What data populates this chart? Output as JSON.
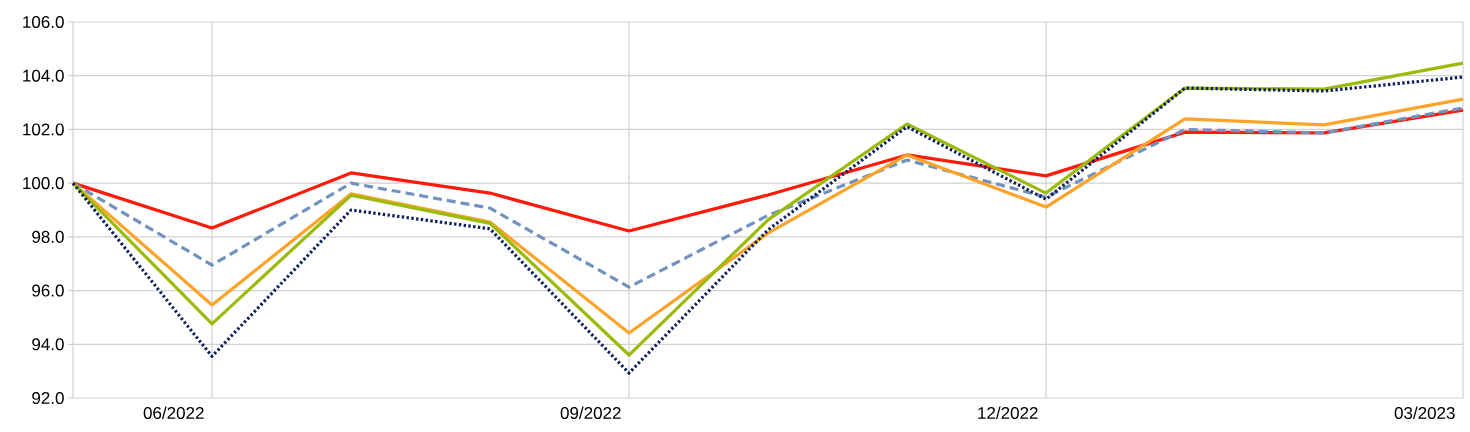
{
  "chart_data": {
    "type": "line",
    "categories": [
      null,
      "06/2022",
      null,
      null,
      "09/2022",
      null,
      null,
      "12/2022",
      null,
      null,
      "03/2023"
    ],
    "series": [
      {
        "color": "#ff1a0a",
        "line_style": "solid",
        "values": [
          100.0,
          98.33,
          100.38,
          99.63,
          98.22,
          99.56,
          101.05,
          100.27,
          101.9,
          101.87,
          102.72
        ]
      },
      {
        "color": "#7393bf",
        "line_style": "dashed",
        "values": [
          100.0,
          96.95,
          100.0,
          99.07,
          96.13,
          98.8,
          100.86,
          99.48,
          102.0,
          101.87,
          102.8
        ]
      },
      {
        "color": "#fca32a",
        "line_style": "solid",
        "values": [
          100.0,
          95.46,
          99.6,
          98.55,
          94.42,
          98.14,
          101.05,
          99.11,
          102.39,
          102.17,
          103.13
        ]
      },
      {
        "color": "#9bbb0c",
        "line_style": "solid",
        "values": [
          100.0,
          94.76,
          99.55,
          98.5,
          93.6,
          98.63,
          102.2,
          99.63,
          103.54,
          103.5,
          104.47
        ]
      },
      {
        "color": "#0d1f5c",
        "line_style": "dotted",
        "values": [
          100.0,
          93.55,
          99.0,
          98.3,
          92.93,
          98.26,
          102.1,
          99.4,
          103.54,
          103.43,
          103.95
        ]
      }
    ],
    "ylim": [
      92,
      106
    ],
    "yticks": [
      {
        "value": 92,
        "label": "92.0"
      },
      {
        "value": 94,
        "label": "94.0"
      },
      {
        "value": 96,
        "label": "96.0"
      },
      {
        "value": 98,
        "label": "98.0"
      },
      {
        "value": 100,
        "label": "100.0"
      },
      {
        "value": 102,
        "label": "102.0"
      },
      {
        "value": 104,
        "label": "104.0"
      },
      {
        "value": 106,
        "label": "106.0"
      }
    ],
    "grid": true,
    "marker": "none"
  }
}
